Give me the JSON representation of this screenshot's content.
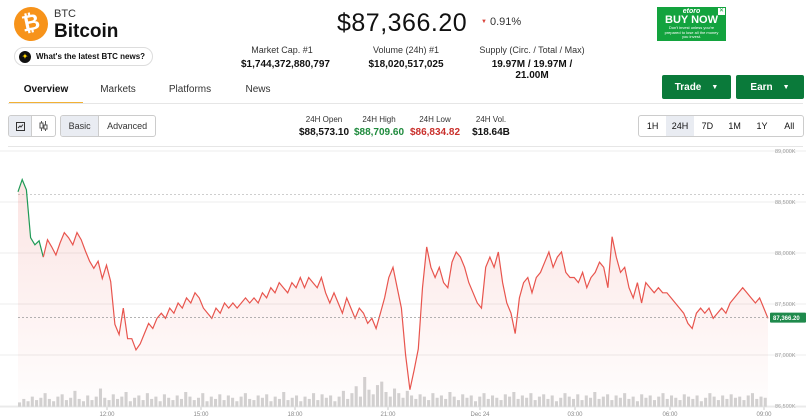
{
  "header": {
    "symbol": "BTC",
    "name": "Bitcoin",
    "price": "$87,366.20",
    "change": "0.91%",
    "ai_question": "What's the latest BTC news?"
  },
  "stats": [
    {
      "label": "Market Cap. #1",
      "value": "$1,744,372,880,797"
    },
    {
      "label": "Volume (24h) #1",
      "value": "$18,020,517,025"
    },
    {
      "label": "Supply (Circ. / Total / Max)",
      "value": "19.97M / 19.97M / 21.00M"
    }
  ],
  "ad": {
    "brand": "etoro",
    "cta": "BUY NOW",
    "fine": "Don't invest unless you're prepared to lose all the money you invest."
  },
  "actions": {
    "trade": "Trade",
    "earn": "Earn"
  },
  "tabs": [
    "Overview",
    "Markets",
    "Platforms",
    "News"
  ],
  "toolbar": {
    "mode_basic": "Basic",
    "mode_advanced": "Advanced",
    "ohlc": [
      {
        "label": "24H Open",
        "value": "$88,573.10",
        "color": "#111111"
      },
      {
        "label": "24H High",
        "value": "$88,709.60",
        "color": "#1e8a3c"
      },
      {
        "label": "24H Low",
        "value": "$86,834.82",
        "color": "#c9302c"
      },
      {
        "label": "24H Vol.",
        "value": "$18.64B",
        "color": "#111111"
      }
    ],
    "ranges": [
      "1H",
      "24H",
      "7D",
      "1M",
      "1Y",
      "All"
    ],
    "active_range": "24H"
  },
  "colors": {
    "line": "#e8554e",
    "current_tag": "#1f8a4c",
    "accent_green": "#0a7a3a",
    "tab_underline": "#f2b134",
    "volume": "#d2d2d2"
  },
  "chart_data": {
    "type": "line",
    "y_ticks": [
      "89,000K",
      "88,500K",
      "88,000K",
      "87,500K",
      "87,000K",
      "86,500K"
    ],
    "ylim": [
      86500,
      89000
    ],
    "x_ticks": [
      "12:00",
      "15:00",
      "18:00",
      "21:00",
      "Dec 24",
      "03:00",
      "06:00",
      "09:00"
    ],
    "current_label": "87,366.20",
    "current_value": 87366.2,
    "reference_value": 88573.1,
    "series": [
      {
        "values": [
          88600,
          88720,
          88620,
          88150,
          88080,
          88120,
          87960,
          88130,
          88060,
          87980,
          88100,
          88200,
          88150,
          88080,
          88200,
          88130,
          88020,
          87920,
          87850,
          87920,
          87750,
          87880,
          87720,
          87300,
          87200,
          87460,
          87160,
          87160,
          87050,
          87110,
          87210,
          87310,
          87260,
          87360,
          87410,
          87360,
          87460,
          87410,
          87510,
          87460,
          87560,
          87510,
          87610,
          87560,
          87460,
          87410,
          87360,
          87460,
          87410,
          87510,
          87460,
          87510,
          87460,
          87510,
          87560,
          87510,
          87560,
          87510,
          87610,
          87560,
          87660,
          87610,
          87710,
          87660,
          87610,
          87710,
          87660,
          87760,
          87660,
          87760,
          87710,
          87660,
          87760,
          87610,
          87510,
          87610,
          87510,
          87410,
          87560,
          87460,
          87360,
          87460,
          87410,
          87310,
          87360,
          87260,
          87410,
          87560,
          87760,
          87860,
          87660,
          87460,
          87000,
          86660,
          86850,
          87060,
          87660,
          88060,
          87860,
          87760,
          87860,
          87710,
          87660,
          87910,
          88010,
          87960,
          87860,
          87710,
          87610,
          87510,
          87460,
          87860,
          87960,
          87860,
          88010,
          87710,
          87510,
          87410,
          87210,
          87560,
          87710,
          87760,
          87610,
          87760,
          87810,
          87910,
          88010,
          87860,
          87960,
          88010,
          87810,
          87760,
          87760,
          87710,
          87810,
          87660,
          87760,
          87810,
          87910,
          87860,
          87660,
          88160,
          87960,
          87810,
          87860,
          87660,
          87560,
          87710,
          87510,
          87710,
          87660,
          87610,
          87660,
          87610,
          87610,
          87560,
          87510,
          87460,
          87410,
          87310,
          87260,
          87410,
          87460,
          87410,
          87460,
          87360,
          87410,
          87460,
          87410,
          87510,
          87560,
          87610,
          87660,
          87610,
          87560,
          87510,
          87560,
          87460,
          87360
        ]
      }
    ],
    "volume": [
      4,
      7,
      5,
      9,
      6,
      8,
      12,
      7,
      5,
      9,
      11,
      6,
      8,
      14,
      7,
      5,
      10,
      6,
      9,
      16,
      8,
      6,
      11,
      7,
      9,
      13,
      5,
      8,
      10,
      6,
      12,
      7,
      9,
      5,
      11,
      8,
      6,
      10,
      7,
      13,
      9,
      6,
      8,
      12,
      5,
      9,
      7,
      11,
      6,
      10,
      8,
      5,
      9,
      12,
      7,
      6,
      10,
      8,
      11,
      5,
      9,
      7,
      13,
      6,
      8,
      10,
      5,
      9,
      7,
      12,
      6,
      11,
      8,
      10,
      5,
      9,
      14,
      7,
      12,
      18,
      9,
      26,
      15,
      11,
      19,
      22,
      13,
      9,
      16,
      12,
      8,
      14,
      10,
      7,
      11,
      9,
      6,
      12,
      8,
      10,
      7,
      13,
      9,
      6,
      11,
      8,
      10,
      5,
      9,
      12,
      7,
      10,
      8,
      6,
      11,
      9,
      13,
      7,
      10,
      8,
      12,
      6,
      9,
      11,
      7,
      10,
      5,
      8,
      12,
      9,
      7,
      11,
      6,
      10,
      8,
      13,
      7,
      9,
      11,
      6,
      10,
      8,
      12,
      7,
      9,
      5,
      11,
      8,
      10,
      6,
      9,
      12,
      7,
      10,
      8,
      6,
      11,
      9,
      7,
      10,
      5,
      8,
      12,
      9,
      6,
      10,
      7,
      11,
      8,
      9,
      6,
      10,
      12,
      7,
      9,
      8
    ]
  }
}
